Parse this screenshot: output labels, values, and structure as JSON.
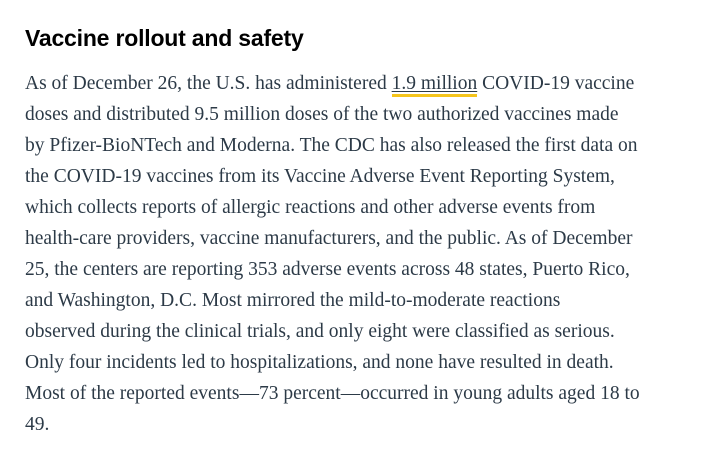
{
  "article": {
    "heading": "Vaccine rollout and safety",
    "colors": {
      "heading_text": "#000000",
      "body_text": "#2c3a47",
      "link_underline_accent": "#f5c51c",
      "page_background": "#ffffff"
    },
    "paragraph": {
      "line1": {
        "pre": "As of December 26, the U.S. has administered ",
        "link": "1.9 million",
        "post": " COVID-19 vaccine"
      },
      "lines_rest": [
        "doses and distributed 9.5 million doses of the two authorized vaccines made",
        "by Pfizer-BioNTech and Moderna. The CDC has also released the first data on",
        "the COVID-19 vaccines from its Vaccine Adverse Event Reporting System,",
        "which collects reports of allergic reactions and other adverse events from",
        "health-care providers, vaccine manufacturers, and the public. As of December",
        "25, the centers are reporting 353 adverse events across 48 states, Puerto Rico,",
        "and Washington, D.C. Most mirrored the mild-to-moderate reactions",
        "observed during the clinical trials, and only eight were classified as serious.",
        "Only four incidents led to hospitalizations, and none have resulted in death.",
        "Most of the reported events—73 percent—occurred in young adults aged 18 to",
        "49."
      ],
      "full_text": "As of December 26, the U.S. has administered 1.9 million COVID-19 vaccine doses and distributed 9.5 million doses of the two authorized vaccines made by Pfizer-BioNTech and Moderna. The CDC has also released the first data on the COVID-19 vaccines from its Vaccine Adverse Event Reporting System, which collects reports of allergic reactions and other adverse events from health-care providers, vaccine manufacturers, and the public. As of December 25, the centers are reporting 353 adverse events across 48 states, Puerto Rico, and Washington, D.C. Most mirrored the mild-to-moderate reactions observed during the clinical trials, and only eight were classified as serious. Only four incidents led to hospitalizations, and none have resulted in death. Most of the reported events—73 percent—occurred in young adults aged 18 to 49."
    }
  }
}
